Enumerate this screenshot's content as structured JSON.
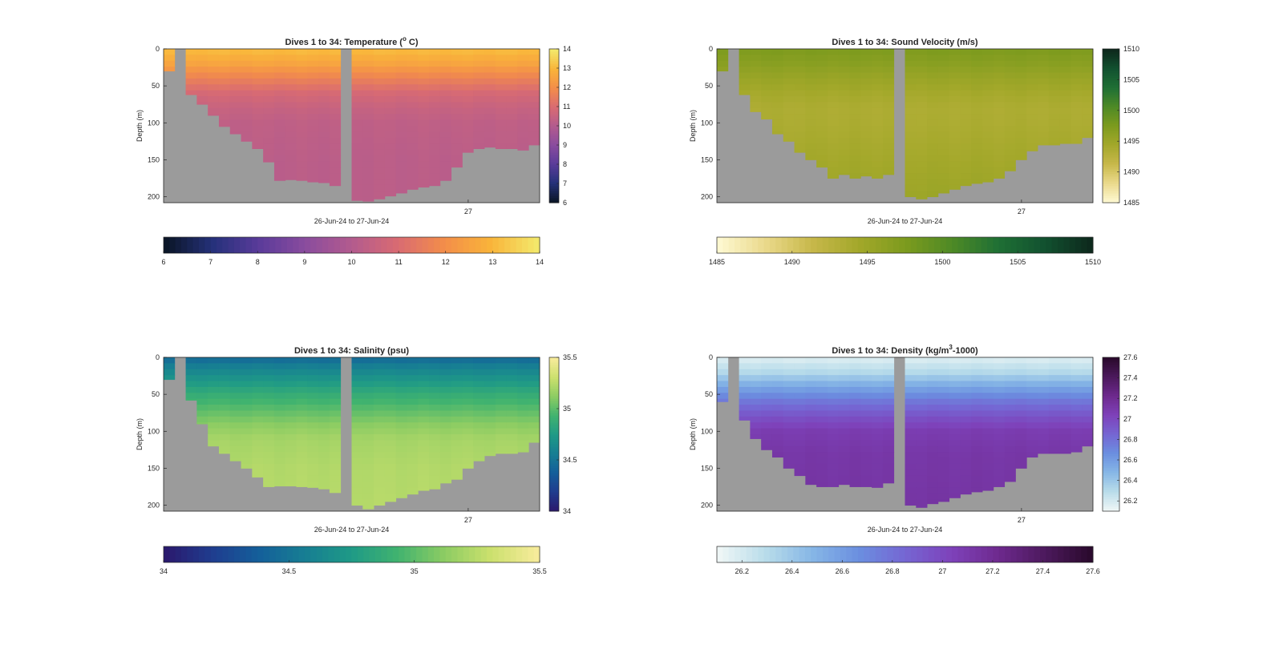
{
  "figure": {
    "background": "#ffffff"
  },
  "chart_data": [
    {
      "type": "heatmap",
      "title": "Dives 1 to 34: Temperature (°C)",
      "title_prefix": "Dives 1 to 34: Temperature (",
      "title_sup": "o",
      "title_suffix": " C)",
      "ylabel": "Depth (m)",
      "xlabel": "26-Jun-24 to 27-Jun-24",
      "x_tick_labels": [
        "27"
      ],
      "y_ticks": [
        0,
        50,
        100,
        150,
        200
      ],
      "ylim": [
        0,
        208
      ],
      "y_reversed": true,
      "clim": [
        6,
        14
      ],
      "colorbar_ticks": [
        6,
        7,
        8,
        9,
        10,
        11,
        12,
        13,
        14
      ],
      "horizontal_colorbar_ticks": [
        6,
        7,
        8,
        9,
        10,
        11,
        12,
        13,
        14
      ],
      "colormap": [
        "#0b1628",
        "#25317a",
        "#5a3b9a",
        "#8a4c9e",
        "#b35b8e",
        "#d96b72",
        "#f38d4a",
        "#f9b43a",
        "#f3e76a"
      ],
      "missing_color": "#9b9b9b",
      "profile_values": {
        "depths": [
          0,
          20,
          40,
          60,
          80,
          100,
          150,
          200
        ],
        "values": [
          13.2,
          12.6,
          11.7,
          10.9,
          10.5,
          10.3,
          10.2,
          10.2
        ]
      },
      "gap_dives": [
        15
      ],
      "max_depth_per_dive": [
        30,
        0,
        62,
        75,
        90,
        105,
        115,
        125,
        135,
        153,
        178,
        177,
        178,
        180,
        181,
        185,
        0,
        205,
        206,
        203,
        199,
        195,
        190,
        187,
        185,
        178,
        160,
        140,
        135,
        133,
        135,
        135,
        137,
        130
      ]
    },
    {
      "type": "heatmap",
      "title": "Dives 1 to 34: Sound Velocity (m/s)",
      "title_prefix": "Dives 1 to 34: Sound Velocity (m/s)",
      "title_sup": "",
      "title_suffix": "",
      "ylabel": "Depth (m)",
      "xlabel": "26-Jun-24 to 27-Jun-24",
      "x_tick_labels": [
        "27"
      ],
      "y_ticks": [
        0,
        50,
        100,
        150,
        200
      ],
      "ylim": [
        0,
        208
      ],
      "y_reversed": true,
      "clim": [
        1485,
        1510
      ],
      "colorbar_ticks": [
        1485,
        1490,
        1495,
        1500,
        1505,
        1510
      ],
      "horizontal_colorbar_ticks": [
        1485,
        1490,
        1495,
        1500,
        1505,
        1510
      ],
      "colormap": [
        "#fdf8d0",
        "#ead98a",
        "#c7b84a",
        "#a3a82a",
        "#7d9b1e",
        "#4f8a25",
        "#1f7034",
        "#125230",
        "#0d2a1d"
      ],
      "missing_color": "#9b9b9b",
      "profile_values": {
        "depths": [
          0,
          20,
          40,
          60,
          80,
          100,
          150,
          200
        ],
        "values": [
          1497.5,
          1496.5,
          1495.2,
          1494.2,
          1493.5,
          1493.6,
          1494.3,
          1495.0
        ]
      },
      "gap_dives": [
        15
      ],
      "max_depth_per_dive": [
        30,
        0,
        62,
        85,
        95,
        115,
        125,
        140,
        150,
        160,
        175,
        170,
        175,
        172,
        175,
        170,
        0,
        200,
        203,
        200,
        195,
        190,
        185,
        182,
        180,
        175,
        165,
        150,
        138,
        130,
        130,
        128,
        128,
        120
      ]
    },
    {
      "type": "heatmap",
      "title": "Dives 1 to 34: Salinity (psu)",
      "title_prefix": "Dives 1 to 34: Salinity (psu)",
      "title_sup": "",
      "title_suffix": "",
      "ylabel": "Depth (m)",
      "xlabel": "26-Jun-24 to 27-Jun-24",
      "x_tick_labels": [
        "27"
      ],
      "y_ticks": [
        0,
        50,
        100,
        150,
        200
      ],
      "ylim": [
        0,
        208
      ],
      "y_reversed": true,
      "clim": [
        34,
        35.5
      ],
      "colorbar_ticks": [
        34,
        34.5,
        35,
        35.5
      ],
      "horizontal_colorbar_ticks": [
        34,
        34.5,
        35,
        35.5
      ],
      "colormap": [
        "#2a1a6e",
        "#1f3d8f",
        "#145f9a",
        "#177e93",
        "#1f9a86",
        "#41b36f",
        "#8ccc63",
        "#cbe06d",
        "#f6eb9a"
      ],
      "missing_color": "#9b9b9b",
      "profile_values": {
        "depths": [
          0,
          10,
          30,
          50,
          70,
          90,
          110,
          150,
          200
        ],
        "values": [
          34.42,
          34.55,
          34.72,
          34.88,
          35.0,
          35.12,
          35.2,
          35.24,
          35.25
        ]
      },
      "gap_dives": [
        15
      ],
      "max_depth_per_dive": [
        30,
        0,
        58,
        90,
        120,
        130,
        140,
        150,
        162,
        175,
        174,
        174,
        175,
        176,
        178,
        183,
        0,
        200,
        205,
        200,
        195,
        190,
        185,
        180,
        178,
        170,
        165,
        150,
        140,
        133,
        130,
        130,
        128,
        115
      ]
    },
    {
      "type": "heatmap",
      "title": "Dives 1 to 34: Density (kg/m³-1000)",
      "title_prefix": "Dives 1 to 34: Density (kg/m",
      "title_sup": "3",
      "title_suffix": "-1000)",
      "ylabel": "Depth (m)",
      "xlabel": "26-Jun-24 to 27-Jun-24",
      "x_tick_labels": [
        "27"
      ],
      "y_ticks": [
        0,
        50,
        100,
        150,
        200
      ],
      "ylim": [
        0,
        208
      ],
      "y_reversed": true,
      "clim": [
        26.1,
        27.6
      ],
      "colorbar_ticks": [
        26.2,
        26.4,
        26.6,
        26.8,
        27,
        27.2,
        27.4,
        27.6
      ],
      "horizontal_colorbar_ticks": [
        26.2,
        26.4,
        26.6,
        26.8,
        27,
        27.2,
        27.4,
        27.6
      ],
      "colormap": [
        "#eef6f6",
        "#b8dcea",
        "#86b6e6",
        "#6b8fe0",
        "#7566d3",
        "#7e42ba",
        "#6e2a8f",
        "#4d1a5e",
        "#2b0a2e"
      ],
      "missing_color": "#9b9b9b",
      "profile_values": {
        "depths": [
          0,
          20,
          40,
          60,
          80,
          100,
          130,
          200
        ],
        "values": [
          26.15,
          26.3,
          26.55,
          26.78,
          26.95,
          27.08,
          27.12,
          27.14
        ]
      },
      "gap_dives": [
        15
      ],
      "max_depth_per_dive": [
        60,
        0,
        85,
        110,
        125,
        135,
        150,
        160,
        172,
        175,
        175,
        172,
        175,
        175,
        176,
        170,
        0,
        200,
        203,
        198,
        195,
        190,
        185,
        182,
        180,
        175,
        168,
        150,
        135,
        130,
        130,
        130,
        128,
        120
      ]
    }
  ]
}
